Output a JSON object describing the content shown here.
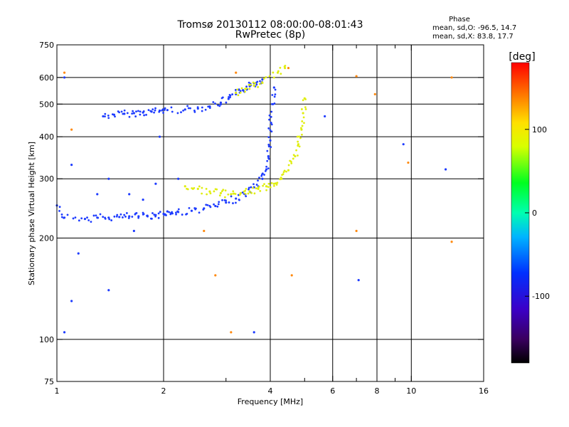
{
  "chart_data": {
    "type": "scatter",
    "title": "Tromsø 20130112 08:00:00-08:01:43",
    "subtitle": "RwPretec (8p)",
    "xlabel": "Frequency [MHz]",
    "ylabel": "Stationary phase Virtual Height [km]",
    "xscale": "log",
    "yscale": "log",
    "xlim": [
      1,
      16
    ],
    "ylim": [
      75,
      750
    ],
    "x_ticks": [
      {
        "v": 1,
        "label": "1"
      },
      {
        "v": 2,
        "label": "2"
      },
      {
        "v": 4,
        "label": "4"
      },
      {
        "v": 6,
        "label": "6"
      },
      {
        "v": 8,
        "label": "8"
      },
      {
        "v": 10,
        "label": "10"
      },
      {
        "v": 16,
        "label": "16"
      }
    ],
    "x_minor": [
      3,
      5,
      7,
      9
    ],
    "y_ticks": [
      {
        "v": 75,
        "label": "75"
      },
      {
        "v": 100,
        "label": "100"
      },
      {
        "v": 200,
        "label": "200"
      },
      {
        "v": 300,
        "label": "300"
      },
      {
        "v": 400,
        "label": "400"
      },
      {
        "v": 500,
        "label": "500"
      },
      {
        "v": 600,
        "label": "600"
      },
      {
        "v": 750,
        "label": "750"
      }
    ],
    "gridlines_x": [
      2,
      4,
      6,
      8,
      10
    ],
    "gridlines_y": [
      100,
      200,
      300,
      400,
      500,
      600
    ],
    "grid": true,
    "stats": {
      "title": "Phase",
      "line_o": "mean, sd,O: -96.5, 14.7",
      "line_x": "mean, sd,X:  83.8, 17.7"
    },
    "colorbar": {
      "label": "[deg]",
      "range": [
        -180,
        180
      ],
      "ticks": [
        {
          "v": 100,
          "label": "100"
        },
        {
          "v": 0,
          "label": "0"
        },
        {
          "v": -100,
          "label": "-100"
        }
      ]
    },
    "series": [
      {
        "trace": "o-mode upper",
        "phase": -100,
        "color": "#1e3cff",
        "points": [
          [
            1.35,
            460
          ],
          [
            1.45,
            465
          ],
          [
            1.55,
            468
          ],
          [
            1.65,
            470
          ],
          [
            1.75,
            472
          ],
          [
            1.85,
            475
          ],
          [
            1.95,
            478
          ],
          [
            2.05,
            480
          ],
          [
            2.3,
            482
          ],
          [
            2.5,
            485
          ],
          [
            2.7,
            492
          ],
          [
            2.9,
            505
          ],
          [
            3.05,
            518
          ],
          [
            3.2,
            535
          ],
          [
            3.35,
            550
          ],
          [
            3.5,
            565
          ],
          [
            3.65,
            578
          ],
          [
            3.8,
            592
          ]
        ]
      },
      {
        "trace": "o-mode lower",
        "phase": -100,
        "color": "#1e3cff",
        "points": [
          [
            1.0,
            250
          ],
          [
            1.05,
            230
          ],
          [
            1.2,
            228
          ],
          [
            1.3,
            230
          ],
          [
            1.4,
            230
          ],
          [
            1.5,
            231
          ],
          [
            1.6,
            232
          ],
          [
            1.7,
            232
          ],
          [
            1.8,
            233
          ],
          [
            1.9,
            234
          ],
          [
            2.0,
            236
          ],
          [
            2.1,
            237
          ],
          [
            2.2,
            239
          ],
          [
            2.4,
            241
          ],
          [
            2.6,
            245
          ],
          [
            2.8,
            249
          ],
          [
            3.0,
            255
          ],
          [
            3.2,
            262
          ],
          [
            3.4,
            270
          ],
          [
            3.6,
            283
          ],
          [
            3.8,
            300
          ],
          [
            3.9,
            320
          ],
          [
            3.95,
            350
          ],
          [
            4.0,
            390
          ],
          [
            4.02,
            440
          ],
          [
            4.05,
            500
          ],
          [
            4.1,
            560
          ]
        ]
      },
      {
        "trace": "x-mode",
        "phase": 95,
        "color": "#e0ee10",
        "points": [
          [
            2.3,
            285
          ],
          [
            2.5,
            280
          ],
          [
            2.7,
            275
          ],
          [
            2.9,
            272
          ],
          [
            3.1,
            270
          ],
          [
            3.3,
            272
          ],
          [
            3.5,
            275
          ],
          [
            3.7,
            280
          ],
          [
            3.9,
            285
          ],
          [
            4.1,
            290
          ],
          [
            4.3,
            300
          ],
          [
            4.5,
            318
          ],
          [
            4.7,
            350
          ],
          [
            4.8,
            380
          ],
          [
            4.9,
            420
          ],
          [
            4.95,
            470
          ],
          [
            5.0,
            520
          ]
        ]
      },
      {
        "trace": "x-mode upper",
        "phase": 95,
        "color": "#e0ee10",
        "points": [
          [
            3.2,
            540
          ],
          [
            3.4,
            555
          ],
          [
            3.6,
            568
          ],
          [
            3.8,
            578
          ],
          [
            4.2,
            620
          ],
          [
            4.4,
            640
          ]
        ]
      },
      {
        "trace": "scattered",
        "phase": -100,
        "color": "#1e3cff",
        "points": [
          [
            1.05,
            105
          ],
          [
            1.1,
            130
          ],
          [
            1.15,
            180
          ],
          [
            1.3,
            270
          ],
          [
            1.4,
            300
          ],
          [
            1.6,
            270
          ],
          [
            1.75,
            260
          ],
          [
            1.9,
            290
          ],
          [
            2.05,
            240
          ],
          [
            2.2,
            300
          ],
          [
            1.4,
            140
          ],
          [
            1.65,
            210
          ],
          [
            1.95,
            400
          ],
          [
            3.6,
            105
          ],
          [
            5.7,
            460
          ],
          [
            7.1,
            150
          ],
          [
            9.5,
            380
          ],
          [
            12.5,
            320
          ],
          [
            1.05,
            600
          ],
          [
            1.1,
            330
          ]
        ]
      },
      {
        "trace": "scattered x",
        "phase": 120,
        "color": "#ff8a10",
        "points": [
          [
            1.05,
            620
          ],
          [
            1.1,
            420
          ],
          [
            3.2,
            620
          ],
          [
            4.5,
            640
          ],
          [
            4.6,
            155
          ],
          [
            7.0,
            210
          ],
          [
            7.0,
            605
          ],
          [
            7.9,
            535
          ],
          [
            9.8,
            335
          ],
          [
            13.0,
            600
          ],
          [
            13.0,
            195
          ],
          [
            2.8,
            155
          ],
          [
            2.6,
            210
          ],
          [
            3.1,
            105
          ]
        ]
      }
    ]
  }
}
